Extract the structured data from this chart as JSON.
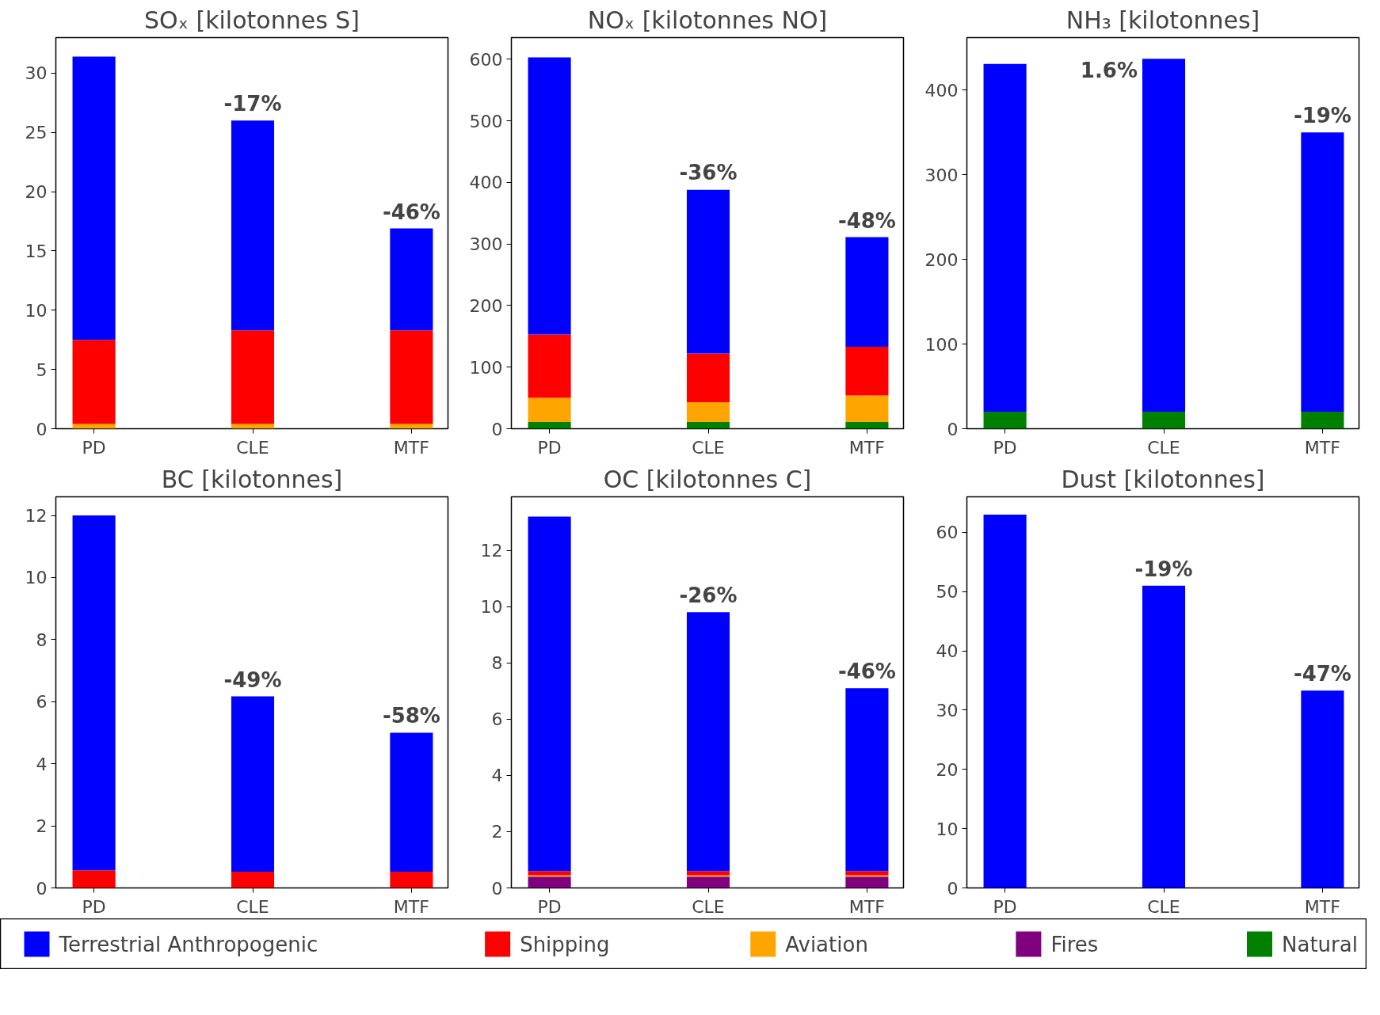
{
  "chart_data": [
    {
      "type": "bar",
      "title": "SOₓ [kilotonnes S]",
      "categories": [
        "PD",
        "CLE",
        "MTF"
      ],
      "stacked": true,
      "ylim": [
        0,
        33
      ],
      "yticks": [
        0,
        5,
        10,
        15,
        20,
        25,
        30
      ],
      "grid": false,
      "legend": "bottom",
      "annotations": [
        {
          "text": "-17%",
          "x": "CLE",
          "y": 26.0
        },
        {
          "text": "-46%",
          "x": "MTF",
          "y": 16.9
        }
      ],
      "series": [
        {
          "name": "Aviation",
          "color": "#ffa500",
          "values": [
            0.4,
            0.4,
            0.4
          ]
        },
        {
          "name": "Shipping",
          "color": "#ff0000",
          "values": [
            7.1,
            7.9,
            7.9
          ]
        },
        {
          "name": "Terrestrial Anthropogenic",
          "color": "#0000ff",
          "values": [
            23.9,
            17.7,
            8.6
          ]
        }
      ]
    },
    {
      "type": "bar",
      "title": "NOₓ [kilotonnes NO]",
      "categories": [
        "PD",
        "CLE",
        "MTF"
      ],
      "stacked": true,
      "ylim": [
        0,
        635
      ],
      "yticks": [
        0,
        100,
        200,
        300,
        400,
        500,
        600
      ],
      "grid": false,
      "legend": "bottom",
      "annotations": [
        {
          "text": "-36%",
          "x": "CLE",
          "y": 389
        },
        {
          "text": "-48%",
          "x": "MTF",
          "y": 311
        }
      ],
      "series": [
        {
          "name": "Natural",
          "color": "#008000",
          "values": [
            11,
            11,
            11
          ]
        },
        {
          "name": "Aviation",
          "color": "#ffa500",
          "values": [
            39,
            32,
            43
          ]
        },
        {
          "name": "Shipping",
          "color": "#ff0000",
          "values": [
            103,
            79,
            79
          ]
        },
        {
          "name": "Terrestrial Anthropogenic",
          "color": "#0000ff",
          "values": [
            450,
            266,
            178
          ]
        }
      ]
    },
    {
      "type": "bar",
      "title": "NH₃ [kilotonnes]",
      "categories": [
        "PD",
        "CLE",
        "MTF"
      ],
      "stacked": true,
      "ylim": [
        0,
        462
      ],
      "yticks": [
        0,
        100,
        200,
        300,
        400
      ],
      "grid": false,
      "legend": "bottom",
      "annotations": [
        {
          "text": "1.6%",
          "x": "CLE",
          "y": 437
        },
        {
          "text": "-19%",
          "x": "MTF",
          "y": 350
        }
      ],
      "series": [
        {
          "name": "Natural",
          "color": "#008000",
          "values": [
            20,
            20,
            20
          ]
        },
        {
          "name": "Terrestrial Anthropogenic",
          "color": "#0000ff",
          "values": [
            411,
            417,
            330
          ]
        }
      ]
    },
    {
      "type": "bar",
      "title": "BC [kilotonnes]",
      "categories": [
        "PD",
        "CLE",
        "MTF"
      ],
      "stacked": true,
      "ylim": [
        0,
        12.6
      ],
      "yticks": [
        0,
        2,
        4,
        6,
        8,
        10,
        12
      ],
      "grid": false,
      "legend": "bottom",
      "annotations": [
        {
          "text": "-49%",
          "x": "CLE",
          "y": 6.17
        },
        {
          "text": "-58%",
          "x": "MTF",
          "y": 5.0
        }
      ],
      "series": [
        {
          "name": "Shipping",
          "color": "#ff0000",
          "values": [
            0.57,
            0.52,
            0.52
          ]
        },
        {
          "name": "Terrestrial Anthropogenic",
          "color": "#0000ff",
          "values": [
            11.43,
            5.65,
            4.48
          ]
        }
      ]
    },
    {
      "type": "bar",
      "title": "OC [kilotonnes C]",
      "categories": [
        "PD",
        "CLE",
        "MTF"
      ],
      "stacked": true,
      "ylim": [
        0,
        13.9
      ],
      "yticks": [
        0,
        2,
        4,
        6,
        8,
        10,
        12
      ],
      "grid": false,
      "legend": "bottom",
      "annotations": [
        {
          "text": "-26%",
          "x": "CLE",
          "y": 9.8
        },
        {
          "text": "-46%",
          "x": "MTF",
          "y": 7.1
        }
      ],
      "series": [
        {
          "name": "Fires",
          "color": "#800080",
          "values": [
            0.4,
            0.4,
            0.4
          ]
        },
        {
          "name": "Aviation",
          "color": "#ffa500",
          "values": [
            0.05,
            0.05,
            0.05
          ]
        },
        {
          "name": "Shipping",
          "color": "#ff0000",
          "values": [
            0.15,
            0.15,
            0.15
          ]
        },
        {
          "name": "Terrestrial Anthropogenic",
          "color": "#0000ff",
          "values": [
            12.6,
            9.2,
            6.5
          ]
        }
      ]
    },
    {
      "type": "bar",
      "title": "Dust [kilotonnes]",
      "categories": [
        "PD",
        "CLE",
        "MTF"
      ],
      "stacked": true,
      "ylim": [
        0,
        66
      ],
      "yticks": [
        0,
        10,
        20,
        30,
        40,
        50,
        60
      ],
      "grid": false,
      "legend": "bottom",
      "annotations": [
        {
          "text": "-19%",
          "x": "CLE",
          "y": 51
        },
        {
          "text": "-47%",
          "x": "MTF",
          "y": 33.3
        }
      ],
      "series": [
        {
          "name": "Terrestrial Anthropogenic",
          "color": "#0000ff",
          "values": [
            63,
            51,
            33.3
          ]
        }
      ]
    }
  ]
}
